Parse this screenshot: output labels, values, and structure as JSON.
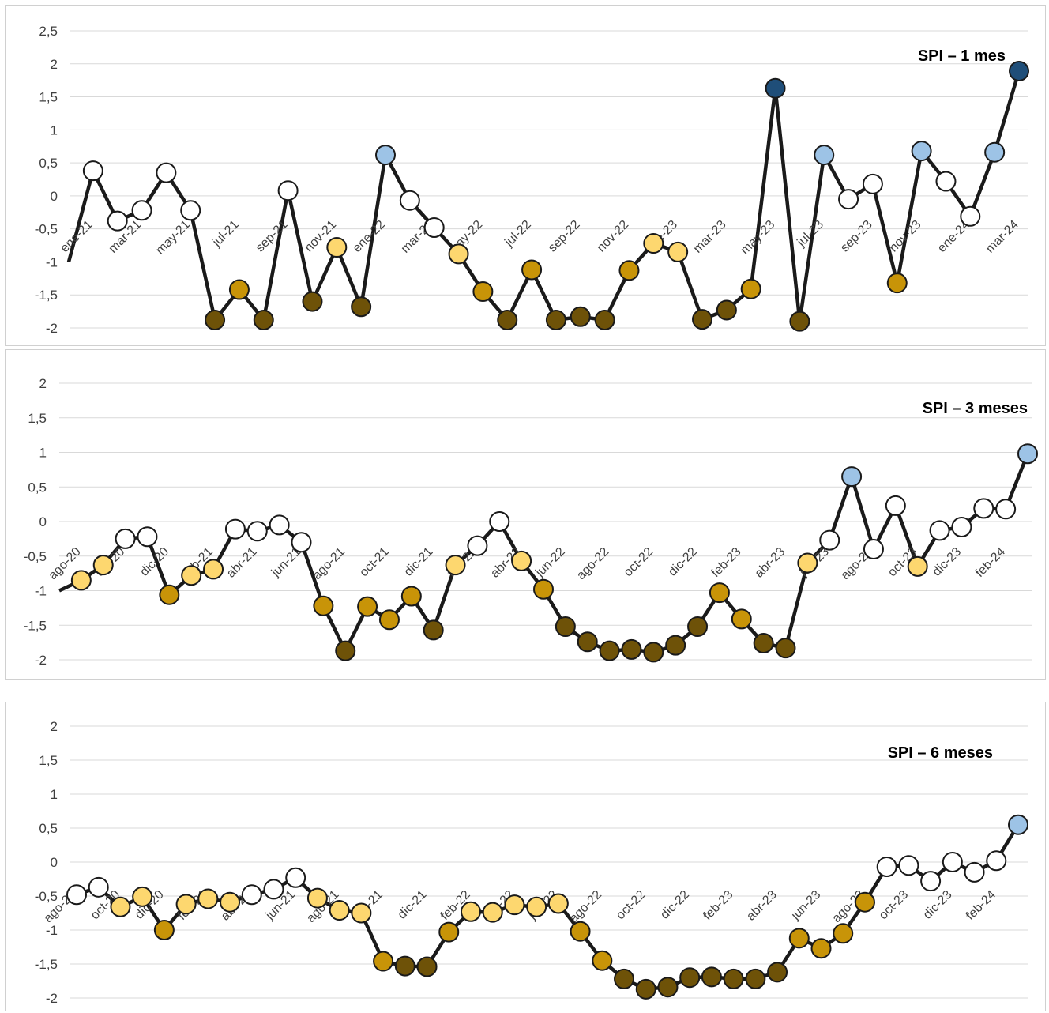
{
  "category_colors": {
    "extremely_dry": "#6e5208",
    "severely_dry": "#c89408",
    "moderately_dry": "#fdd76f",
    "normal": "#ffffff",
    "moderately_wet": "#9dc3e6",
    "extremely_wet": "#1f4e79"
  },
  "chart_data": [
    {
      "type": "line",
      "title": "SPI – 1 mes",
      "xlabel": "",
      "ylabel": "",
      "ylim": [
        -2,
        2.5
      ],
      "yticks": [
        "2,5",
        "2",
        "1,5",
        "1",
        "0,5",
        "0",
        "-0,5",
        "-1",
        "-1,5",
        "-2"
      ],
      "grid": true,
      "x": [
        "dic-20",
        "ene-21",
        "feb-21",
        "mar-21",
        "abr-21",
        "may-21",
        "jun-21",
        "jul-21",
        "ago-21",
        "sep-21",
        "oct-21",
        "nov-21",
        "dic-21",
        "ene-22",
        "feb-22",
        "mar-22",
        "abr-22",
        "may-22",
        "jun-22",
        "jul-22",
        "ago-22",
        "sep-22",
        "oct-22",
        "nov-22",
        "dic-22",
        "ene-23",
        "feb-23",
        "mar-23",
        "abr-23",
        "may-23",
        "jun-23",
        "jul-23",
        "ago-23",
        "sep-23",
        "oct-23",
        "nov-23",
        "dic-23",
        "ene-24",
        "feb-24",
        "mar-24"
      ],
      "xticks": [
        "ene-21",
        "mar-21",
        "may-21",
        "jul-21",
        "sep-21",
        "nov-21",
        "ene-22",
        "mar-22",
        "may-22",
        "jul-22",
        "sep-22",
        "nov-22",
        "ene-23",
        "mar-23",
        "may-23",
        "jul-23",
        "sep-23",
        "nov-23",
        "ene-24",
        "mar-24"
      ],
      "series": [
        {
          "values": [
            -1.0,
            0.38,
            -0.38,
            -0.22,
            0.35,
            -0.22,
            -1.88,
            -1.42,
            -1.88,
            0.08,
            -1.6,
            -0.78,
            -1.68,
            0.62,
            -0.07,
            -0.48,
            -0.88,
            -1.45,
            -1.88,
            -1.12,
            -1.88,
            -1.83,
            -1.88,
            -1.13,
            -0.72,
            -0.85,
            -1.87,
            -1.73,
            -1.41,
            1.63,
            -1.9,
            0.62,
            -0.05,
            0.18,
            -1.32,
            0.68,
            0.22,
            -0.31,
            0.66,
            1.89
          ],
          "category": [
            "none",
            "normal",
            "normal",
            "normal",
            "normal",
            "normal",
            "extremely_dry",
            "severely_dry",
            "extremely_dry",
            "normal",
            "extremely_dry",
            "moderately_dry",
            "extremely_dry",
            "moderately_wet",
            "normal",
            "normal",
            "moderately_dry",
            "severely_dry",
            "extremely_dry",
            "severely_dry",
            "extremely_dry",
            "extremely_dry",
            "extremely_dry",
            "severely_dry",
            "moderately_dry",
            "moderately_dry",
            "extremely_dry",
            "extremely_dry",
            "severely_dry",
            "extremely_wet",
            "extremely_dry",
            "moderately_wet",
            "normal",
            "normal",
            "severely_dry",
            "moderately_wet",
            "normal",
            "normal",
            "moderately_wet",
            "extremely_wet"
          ]
        }
      ]
    },
    {
      "type": "line",
      "title": "SPI – 3 meses",
      "xlabel": "",
      "ylabel": "",
      "ylim": [
        -2,
        2
      ],
      "yticks": [
        "2",
        "1,5",
        "1",
        "0,5",
        "0",
        "-0,5",
        "-1",
        "-1,5",
        "-2"
      ],
      "grid": true,
      "x": [
        "jul-20",
        "ago-20",
        "sep-20",
        "oct-20",
        "nov-20",
        "dic-20",
        "ene-21",
        "feb-21",
        "mar-21",
        "abr-21",
        "may-21",
        "jun-21",
        "jul-21",
        "ago-21",
        "sep-21",
        "oct-21",
        "nov-21",
        "dic-21",
        "ene-22",
        "feb-22",
        "mar-22",
        "abr-22",
        "may-22",
        "jun-22",
        "jul-22",
        "ago-22",
        "sep-22",
        "oct-22",
        "nov-22",
        "dic-22",
        "ene-23",
        "feb-23",
        "mar-23",
        "abr-23",
        "may-23",
        "jun-23",
        "jul-23",
        "ago-23",
        "sep-23",
        "oct-23",
        "nov-23",
        "dic-23",
        "ene-24",
        "feb-24",
        "mar-24"
      ],
      "xticks": [
        "ago-20",
        "oct-20",
        "dic-20",
        "feb-21",
        "abr-21",
        "jun-21",
        "ago-21",
        "oct-21",
        "dic-21",
        "feb-22",
        "abr-22",
        "jun-22",
        "ago-22",
        "oct-22",
        "dic-22",
        "feb-23",
        "abr-23",
        "jun-23",
        "ago-23",
        "oct-23",
        "dic-23",
        "feb-24"
      ],
      "series": [
        {
          "values": [
            -1.0,
            -0.85,
            -0.63,
            -0.25,
            -0.22,
            -1.06,
            -0.78,
            -0.69,
            -0.11,
            -0.14,
            -0.05,
            -0.3,
            -1.22,
            -1.87,
            -1.23,
            -1.42,
            -1.08,
            -1.57,
            -0.63,
            -0.35,
            0.0,
            -0.57,
            -0.98,
            -1.52,
            -1.74,
            -1.87,
            -1.85,
            -1.89,
            -1.79,
            -1.52,
            -1.03,
            -1.41,
            -1.76,
            -1.83,
            -0.6,
            -0.27,
            0.65,
            -0.4,
            0.23,
            -0.65,
            -0.13,
            -0.08,
            0.19,
            0.18,
            0.98
          ],
          "category": [
            "none",
            "moderately_dry",
            "moderately_dry",
            "normal",
            "normal",
            "severely_dry",
            "moderately_dry",
            "moderately_dry",
            "normal",
            "normal",
            "normal",
            "normal",
            "severely_dry",
            "extremely_dry",
            "severely_dry",
            "severely_dry",
            "severely_dry",
            "extremely_dry",
            "moderately_dry",
            "normal",
            "normal",
            "moderately_dry",
            "severely_dry",
            "extremely_dry",
            "extremely_dry",
            "extremely_dry",
            "extremely_dry",
            "extremely_dry",
            "extremely_dry",
            "extremely_dry",
            "severely_dry",
            "severely_dry",
            "extremely_dry",
            "extremely_dry",
            "moderately_dry",
            "normal",
            "moderately_wet",
            "normal",
            "normal",
            "moderately_dry",
            "normal",
            "normal",
            "normal",
            "normal",
            "moderately_wet"
          ]
        }
      ]
    },
    {
      "type": "line",
      "title": "SPI – 6 meses",
      "xlabel": "",
      "ylabel": "",
      "ylim": [
        -2,
        2
      ],
      "yticks": [
        "2",
        "1,5",
        "1",
        "0,5",
        "0",
        "-0,5",
        "-1",
        "-1,5",
        "-2"
      ],
      "grid": true,
      "x": [
        "ago-20",
        "sep-20",
        "oct-20",
        "nov-20",
        "dic-20",
        "ene-21",
        "feb-21",
        "mar-21",
        "abr-21",
        "may-21",
        "jun-21",
        "jul-21",
        "ago-21",
        "sep-21",
        "oct-21",
        "nov-21",
        "dic-21",
        "ene-22",
        "feb-22",
        "mar-22",
        "abr-22",
        "may-22",
        "jun-22",
        "jul-22",
        "ago-22",
        "sep-22",
        "oct-22",
        "nov-22",
        "dic-22",
        "ene-23",
        "feb-23",
        "mar-23",
        "abr-23",
        "may-23",
        "jun-23",
        "jul-23",
        "ago-23",
        "sep-23",
        "oct-23",
        "nov-23",
        "dic-23",
        "ene-24",
        "feb-24",
        "mar-24"
      ],
      "xticks": [
        "ago-20",
        "oct-20",
        "dic-20",
        "feb-21",
        "abr-21",
        "jun-21",
        "ago-21",
        "oct-21",
        "dic-21",
        "feb-22",
        "abr-22",
        "jun-22",
        "ago-22",
        "oct-22",
        "dic-22",
        "feb-23",
        "abr-23",
        "jun-23",
        "ago-23",
        "oct-23",
        "dic-23",
        "feb-24"
      ],
      "series": [
        {
          "values": [
            -0.48,
            -0.37,
            -0.66,
            -0.51,
            -1.0,
            -0.62,
            -0.54,
            -0.59,
            -0.48,
            -0.4,
            -0.23,
            -0.53,
            -0.71,
            -0.75,
            -1.46,
            -1.53,
            -1.54,
            -1.03,
            -0.73,
            -0.74,
            -0.63,
            -0.66,
            -0.61,
            -1.02,
            -1.45,
            -1.72,
            -1.87,
            -1.84,
            -1.7,
            -1.69,
            -1.72,
            -1.72,
            -1.62,
            -1.12,
            -1.27,
            -1.05,
            -0.59,
            -0.07,
            -0.05,
            -0.28,
            0.0,
            -0.15,
            0.02,
            0.55
          ],
          "category": [
            "normal",
            "normal",
            "moderately_dry",
            "moderately_dry",
            "severely_dry",
            "moderately_dry",
            "moderately_dry",
            "moderately_dry",
            "normal",
            "normal",
            "normal",
            "moderately_dry",
            "moderately_dry",
            "moderately_dry",
            "severely_dry",
            "extremely_dry",
            "extremely_dry",
            "severely_dry",
            "moderately_dry",
            "moderately_dry",
            "moderately_dry",
            "moderately_dry",
            "moderately_dry",
            "severely_dry",
            "severely_dry",
            "extremely_dry",
            "extremely_dry",
            "extremely_dry",
            "extremely_dry",
            "extremely_dry",
            "extremely_dry",
            "extremely_dry",
            "extremely_dry",
            "severely_dry",
            "severely_dry",
            "severely_dry",
            "severely_dry",
            "normal",
            "normal",
            "normal",
            "normal",
            "normal",
            "normal",
            "moderately_wet"
          ]
        }
      ]
    }
  ]
}
